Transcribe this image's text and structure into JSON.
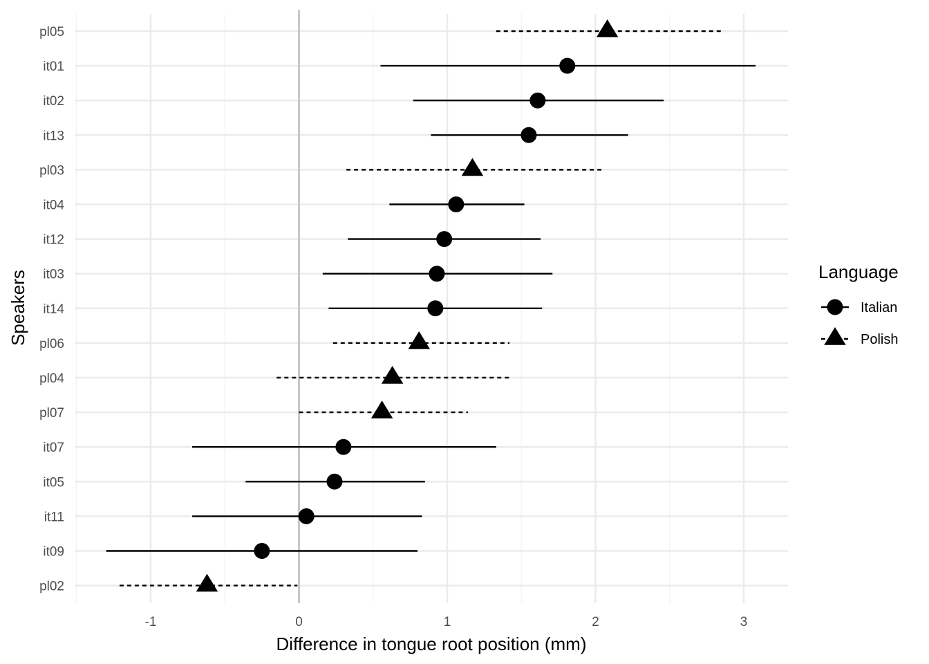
{
  "chart_data": {
    "type": "scatter",
    "subtype": "dot-and-whisker",
    "xlabel": "Difference in tongue root position (mm)",
    "ylabel": "Speakers",
    "xlim": [
      -1.5,
      3.3
    ],
    "x_ticks": [
      -1,
      0,
      1,
      2,
      3
    ],
    "grid": true,
    "reference_line_x": 0,
    "legend": {
      "title": "Language",
      "position": "right",
      "entries": [
        {
          "label": "Italian",
          "shape": "circle",
          "line": "solid"
        },
        {
          "label": "Polish",
          "shape": "triangle",
          "line": "dashed"
        }
      ]
    },
    "points": [
      {
        "speaker": "pl05",
        "language": "Polish",
        "estimate": 2.08,
        "lower": 1.33,
        "upper": 2.85
      },
      {
        "speaker": "it01",
        "language": "Italian",
        "estimate": 1.81,
        "lower": 0.55,
        "upper": 3.08
      },
      {
        "speaker": "it02",
        "language": "Italian",
        "estimate": 1.61,
        "lower": 0.77,
        "upper": 2.46
      },
      {
        "speaker": "it13",
        "language": "Italian",
        "estimate": 1.55,
        "lower": 0.89,
        "upper": 2.22
      },
      {
        "speaker": "pl03",
        "language": "Polish",
        "estimate": 1.17,
        "lower": 0.32,
        "upper": 2.04
      },
      {
        "speaker": "it04",
        "language": "Italian",
        "estimate": 1.06,
        "lower": 0.61,
        "upper": 1.52
      },
      {
        "speaker": "it12",
        "language": "Italian",
        "estimate": 0.98,
        "lower": 0.33,
        "upper": 1.63
      },
      {
        "speaker": "it03",
        "language": "Italian",
        "estimate": 0.93,
        "lower": 0.16,
        "upper": 1.71
      },
      {
        "speaker": "it14",
        "language": "Italian",
        "estimate": 0.92,
        "lower": 0.2,
        "upper": 1.64
      },
      {
        "speaker": "pl06",
        "language": "Polish",
        "estimate": 0.81,
        "lower": 0.23,
        "upper": 1.42
      },
      {
        "speaker": "pl04",
        "language": "Polish",
        "estimate": 0.63,
        "lower": -0.15,
        "upper": 1.42
      },
      {
        "speaker": "pl07",
        "language": "Polish",
        "estimate": 0.56,
        "lower": 0.0,
        "upper": 1.14
      },
      {
        "speaker": "it07",
        "language": "Italian",
        "estimate": 0.3,
        "lower": -0.72,
        "upper": 1.33
      },
      {
        "speaker": "it05",
        "language": "Italian",
        "estimate": 0.24,
        "lower": -0.36,
        "upper": 0.85
      },
      {
        "speaker": "it11",
        "language": "Italian",
        "estimate": 0.05,
        "lower": -0.72,
        "upper": 0.83
      },
      {
        "speaker": "it09",
        "language": "Italian",
        "estimate": -0.25,
        "lower": -1.3,
        "upper": 0.8
      },
      {
        "speaker": "pl02",
        "language": "Polish",
        "estimate": -0.62,
        "lower": -1.21,
        "upper": -0.01
      }
    ],
    "colors": {
      "marks": "#000000",
      "gridMajor": "#ebebeb",
      "gridMinor": "#f4f4f4",
      "zeroLine": "#bdbdbd",
      "tickText": "#4d4d4d",
      "background": "#ffffff"
    }
  }
}
